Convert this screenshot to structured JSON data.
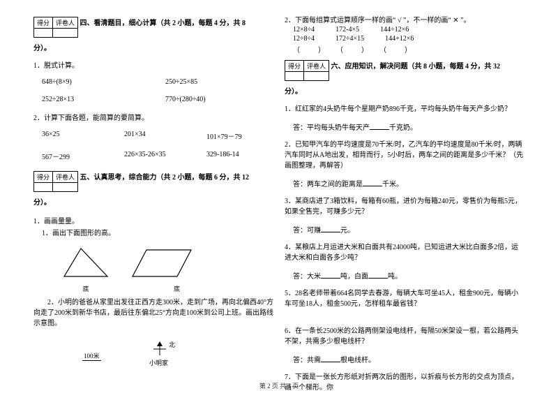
{
  "scorebox": {
    "c1": "得分",
    "c2": "评卷人"
  },
  "sec4": {
    "title": "四、看清题目，细心计算（共 2 小题，每题 4 分，共 8",
    "tail": "分）。",
    "q1": "1．脱式计算。",
    "q1a": "648÷(8×9)",
    "q1b": "250÷25×85",
    "q1c": "252÷28×13",
    "q1d": "770÷(280÷40)",
    "q2": "2．计算下面各题，能简算的要简算。",
    "q2a": "36×25",
    "q2b": "201×34",
    "q2c": "101×79－79",
    "q2d": "567－299",
    "q2e": "226×35-26×35",
    "q2f": "329-186-14"
  },
  "sec5": {
    "title": "五、认真思考，综合能力（共 2 小题，每题 6 分，共 12",
    "tail": "分）。",
    "q1": "1．画画量量。",
    "q1a": "1．画出下面图形的高。",
    "lbl_di": "底",
    "lbl_di2": "底",
    "q2": "　　2．小明的爸爸从家里出发往正西方走300米，走到广场，再向北偏西40°方向走了200米到新华书店，最后往东偏北25°方向走100米到公司上班。画出路线示意图。",
    "scale": "100米",
    "home": "小明家",
    "north": "北"
  },
  "right_top": {
    "q2": "2．下面每组算式运算顺序一样的画“ √ ”，不一样的画“ ✕ ”。",
    "r1a": "12×8÷4",
    "r1b": "172-4×5",
    "r1c": "144÷12×6",
    "r2a": "12÷8÷4",
    "r2b": "172÷4×15",
    "r2c": "144+12×6",
    "p": "（　　）　　（　　）　　（　　）"
  },
  "sec6": {
    "title": "六、应用知识，解决问题（共 8 小题，每题 4 分，共 32",
    "tail": "分）。",
    "q1": "1．红红家的4头奶牛每个星期产奶896千克，平均每头奶牛每天产多少奶？",
    "a1": "答：平均每头奶牛每天产____千克奶。",
    "q2": "2．已知甲汽车的平均速度是70千米/时，乙汽车的平均速度是80千米/时，两辆汽车同时从A地出发，相背而行，5小时后，两车之间的距离是多少千米？（先画图整理，再解答）",
    "a2": "答：两车之间的距离是____千米。",
    "q3": "3．某商店进了3箱饮料，每箱有60瓶，进价为每箱240元，零售价为每瓶5元，如果全售完，可赚多少元？",
    "a3": "答：可赚____元。",
    "q4": "4．某粮店上月运进大米和白面共有24000吨，已知运进大米比白面多2倍，运进大米和白面各多少吨？",
    "a4": "答：大米____吨，白面____吨。",
    "q5": "5．28名老师带着664名同学去春游，每辆大车可坐45人，租金900元，每辆小车可坐18人，租金500元，怎样租车最省钱？",
    "q6": "6．在一条长2500米的公路两侧架设电线杆，每隔50米架设一根，若公路两头不架，共需多少根电线杆？",
    "a6": "答：共需____根电线杆。",
    "q7": "7．下面是一张长方形纸对折两次后的图形，以折痕与长方形的交点为顶点，画一个梯形。你"
  },
  "footer": "第 2 页 共 4 页"
}
